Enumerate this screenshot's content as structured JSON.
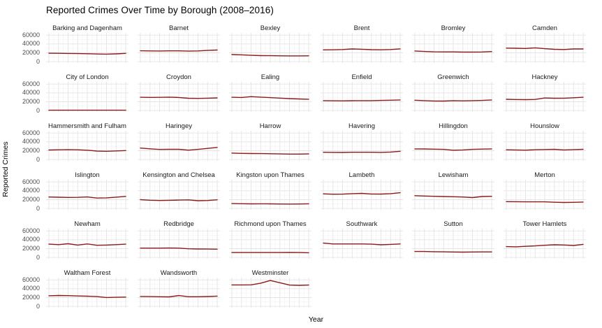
{
  "header": {
    "title": "Reported Crimes Over Time by Borough (2008–2016)"
  },
  "colors": {
    "line": "#8b1a1a",
    "grid_major": "#e4e4e4",
    "grid_minor": "#f1f1f1",
    "tick_text": "#4d4d4d",
    "strip_text": "#1a1a1a",
    "title_text": "#000000",
    "background": "#ffffff"
  },
  "chart_data": {
    "type": "line",
    "title": "Reported Crimes Over Time by Borough (2008–2016)",
    "xlabel": "Year",
    "ylabel": "Reported Crimes",
    "x": [
      2008,
      2009,
      2010,
      2011,
      2012,
      2013,
      2014,
      2015,
      2016
    ],
    "x_tick_labels_shown": false,
    "y_ticks": [
      60000,
      40000,
      20000,
      0
    ],
    "y_tick_labels": [
      "60000",
      "40000",
      "20000",
      "0"
    ],
    "ylim": [
      -3000,
      65000
    ],
    "grid": "major+minor",
    "legend_position": "none",
    "facet_layout": {
      "columns": 6,
      "rows": 6
    },
    "facets": [
      {
        "name": "Barking and Dagenham",
        "values": [
          19000,
          18800,
          18500,
          18200,
          17800,
          17300,
          17000,
          17600,
          18700
        ]
      },
      {
        "name": "Barnet",
        "values": [
          24500,
          24200,
          24000,
          24300,
          24300,
          23800,
          24200,
          25300,
          26300
        ]
      },
      {
        "name": "Bexley",
        "values": [
          16000,
          15300,
          14200,
          13600,
          13400,
          13100,
          13000,
          12900,
          13100
        ]
      },
      {
        "name": "Brent",
        "values": [
          26500,
          26800,
          27300,
          28700,
          28000,
          27000,
          26800,
          27300,
          28800
        ]
      },
      {
        "name": "Bromley",
        "values": [
          24000,
          23000,
          22200,
          22000,
          22000,
          21700,
          21600,
          21900,
          22700
        ]
      },
      {
        "name": "Camden",
        "values": [
          30500,
          30200,
          29700,
          31200,
          29200,
          27800,
          27300,
          28700,
          28600
        ]
      },
      {
        "name": "City of London",
        "values": [
          850,
          800,
          800,
          800,
          800,
          750,
          750,
          800,
          850
        ]
      },
      {
        "name": "Croydon",
        "values": [
          30000,
          29800,
          29900,
          30300,
          29600,
          27800,
          27500,
          28000,
          28600
        ]
      },
      {
        "name": "Ealing",
        "values": [
          30000,
          29600,
          31400,
          30400,
          29300,
          28100,
          27100,
          26200,
          25700
        ]
      },
      {
        "name": "Enfield",
        "values": [
          22500,
          22100,
          22000,
          22300,
          22400,
          22500,
          22900,
          23400,
          24100
        ]
      },
      {
        "name": "Greenwich",
        "values": [
          23400,
          22400,
          21700,
          21500,
          22400,
          22000,
          22400,
          22900,
          24000
        ]
      },
      {
        "name": "Hackney",
        "values": [
          25500,
          25000,
          24600,
          25100,
          28400,
          27900,
          28000,
          29000,
          30100
        ]
      },
      {
        "name": "Hammersmith and Fulham",
        "values": [
          21500,
          22000,
          22400,
          22000,
          21000,
          19200,
          18700,
          19500,
          20200
        ]
      },
      {
        "name": "Haringey",
        "values": [
          26000,
          24200,
          22800,
          23100,
          23100,
          21200,
          23000,
          25100,
          27400
        ]
      },
      {
        "name": "Harrow",
        "values": [
          14500,
          14000,
          13600,
          13400,
          13100,
          12600,
          12400,
          12400,
          12600
        ]
      },
      {
        "name": "Havering",
        "values": [
          16500,
          16100,
          16000,
          16400,
          16500,
          16400,
          16100,
          17000,
          18600
        ]
      },
      {
        "name": "Hillingdon",
        "values": [
          24000,
          23900,
          23400,
          23000,
          21100,
          21600,
          23000,
          23500,
          24100
        ]
      },
      {
        "name": "Hounslow",
        "values": [
          22000,
          21600,
          21200,
          22100,
          22600,
          23100,
          21700,
          22500,
          23100
        ]
      },
      {
        "name": "Islington",
        "values": [
          26000,
          25400,
          25000,
          25100,
          26100,
          23600,
          24100,
          25600,
          27400
        ]
      },
      {
        "name": "Kensington and Chelsea",
        "values": [
          20000,
          18600,
          18100,
          18500,
          19000,
          19400,
          17600,
          18000,
          19600
        ]
      },
      {
        "name": "Kingston upon Thames",
        "values": [
          11000,
          10700,
          10500,
          10600,
          10500,
          10100,
          10000,
          10100,
          10600
        ]
      },
      {
        "name": "Lambeth",
        "values": [
          33000,
          32200,
          32500,
          33600,
          34100,
          32700,
          32600,
          33500,
          35600
        ]
      },
      {
        "name": "Lewisham",
        "values": [
          29000,
          28100,
          27600,
          27100,
          26600,
          26000,
          24600,
          27000,
          27600
        ]
      },
      {
        "name": "Merton",
        "values": [
          15500,
          15400,
          15100,
          15000,
          15000,
          14100,
          13600,
          14000,
          14600
        ]
      },
      {
        "name": "Newham",
        "values": [
          30000,
          29000,
          31000,
          28000,
          30500,
          27500,
          28000,
          29000,
          30000
        ]
      },
      {
        "name": "Redbridge",
        "values": [
          21000,
          21000,
          21100,
          21400,
          21000,
          19600,
          19100,
          19000,
          18700
        ]
      },
      {
        "name": "Richmond upon Thames",
        "values": [
          11000,
          11000,
          11000,
          11100,
          11000,
          11000,
          11400,
          11000,
          10600
        ]
      },
      {
        "name": "Southwark",
        "values": [
          32500,
          30600,
          30500,
          30600,
          30500,
          30100,
          28600,
          29600,
          30600
        ]
      },
      {
        "name": "Sutton",
        "values": [
          13500,
          13400,
          13000,
          12600,
          12400,
          12000,
          12400,
          12500,
          12500
        ]
      },
      {
        "name": "Tower Hamlets",
        "values": [
          24500,
          24100,
          25100,
          26100,
          27600,
          28600,
          28100,
          27100,
          29600
        ]
      },
      {
        "name": "Waltham Forest",
        "values": [
          24000,
          24600,
          24400,
          23600,
          23100,
          22100,
          20100,
          20600,
          21100
        ]
      },
      {
        "name": "Wandsworth",
        "values": [
          22500,
          22200,
          21800,
          21500,
          24500,
          21800,
          21900,
          22300,
          23200
        ]
      },
      {
        "name": "Westminster",
        "values": [
          48500,
          48600,
          48700,
          52500,
          58500,
          53500,
          48200,
          47600,
          48300
        ]
      }
    ]
  }
}
